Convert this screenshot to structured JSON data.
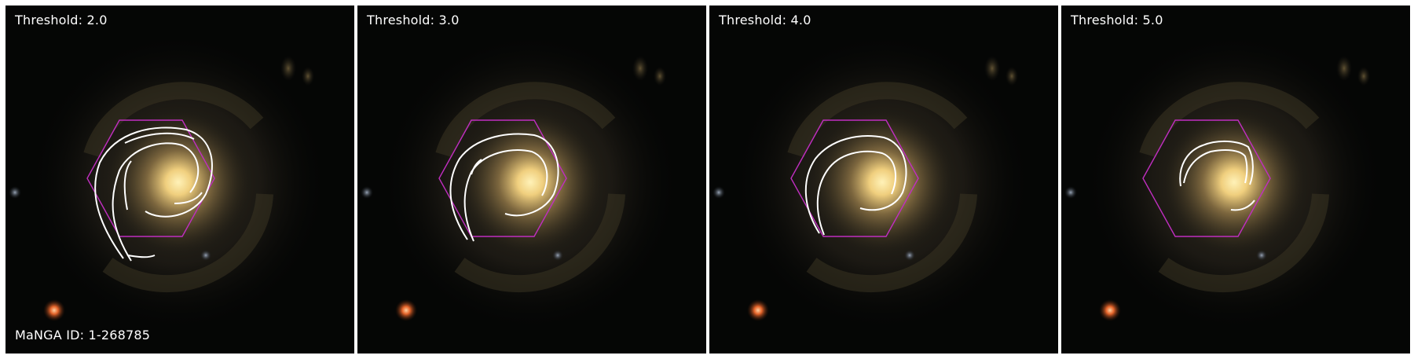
{
  "panels": [
    {
      "label": "Threshold: 2.0"
    },
    {
      "label": "Threshold: 3.0"
    },
    {
      "label": "Threshold: 4.0"
    },
    {
      "label": "Threshold: 5.0"
    }
  ],
  "manga_id": "MaNGA ID: 1-268785",
  "colors": {
    "hexagon": "#c02ec0",
    "contour": "#ffffff",
    "background": "#050605",
    "galaxy_core": "#ffe9a6"
  }
}
